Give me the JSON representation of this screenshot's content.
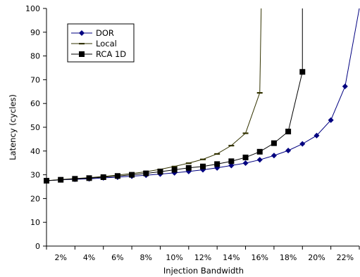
{
  "chart_data": {
    "type": "line",
    "xlabel": "Injection Bandwidth",
    "ylabel": "Latency (cycles)",
    "xlim": [
      0.01,
      0.23
    ],
    "ylim": [
      0,
      100
    ],
    "x_ticks": [
      0.02,
      0.04,
      0.06,
      0.08,
      0.1,
      0.12,
      0.14,
      0.16,
      0.18,
      0.2,
      0.22
    ],
    "x_tick_labels": [
      "2%",
      "4%",
      "6%",
      "8%",
      "10%",
      "12%",
      "14%",
      "16%",
      "18%",
      "20%",
      "22%"
    ],
    "y_ticks": [
      0,
      10,
      20,
      30,
      40,
      50,
      60,
      70,
      80,
      90,
      100
    ],
    "y_tick_labels": [
      "0",
      "10",
      "20",
      "30",
      "40",
      "50",
      "60",
      "70",
      "80",
      "90",
      "100"
    ],
    "grid": false,
    "legend_position": "top-left",
    "series": [
      {
        "name": "DOR",
        "color": "#000080",
        "marker": "diamond",
        "x": [
          0.01,
          0.02,
          0.03,
          0.04,
          0.05,
          0.06,
          0.07,
          0.08,
          0.09,
          0.1,
          0.11,
          0.12,
          0.13,
          0.14,
          0.15,
          0.16,
          0.17,
          0.18,
          0.19,
          0.2,
          0.21,
          0.22,
          0.23
        ],
        "y": [
          27.5,
          27.9,
          28.1,
          28.3,
          28.7,
          29.0,
          29.4,
          29.8,
          30.3,
          30.8,
          31.4,
          32.1,
          32.9,
          33.9,
          34.9,
          36.3,
          38.1,
          40.2,
          43.0,
          46.5,
          53.0,
          67.2,
          100.0
        ]
      },
      {
        "name": "Local",
        "color": "#333300",
        "marker": "dash",
        "x": [
          0.01,
          0.02,
          0.03,
          0.04,
          0.05,
          0.06,
          0.07,
          0.08,
          0.09,
          0.1,
          0.11,
          0.12,
          0.13,
          0.14,
          0.15,
          0.16,
          0.161
        ],
        "y": [
          27.5,
          28.0,
          28.4,
          28.8,
          29.3,
          29.9,
          30.5,
          31.3,
          32.3,
          33.5,
          34.9,
          36.5,
          38.8,
          42.3,
          47.5,
          64.5,
          100.0
        ]
      },
      {
        "name": "RCA 1D",
        "color": "#000000",
        "marker": "square",
        "x": [
          0.01,
          0.02,
          0.03,
          0.04,
          0.05,
          0.06,
          0.07,
          0.08,
          0.09,
          0.1,
          0.11,
          0.12,
          0.13,
          0.14,
          0.15,
          0.16,
          0.17,
          0.18,
          0.19,
          0.19
        ],
        "y": [
          27.5,
          27.9,
          28.3,
          28.6,
          29.0,
          29.5,
          30.0,
          30.6,
          31.3,
          32.1,
          32.9,
          33.5,
          34.5,
          35.7,
          37.3,
          39.7,
          43.3,
          48.2,
          73.3,
          100.0
        ]
      }
    ]
  }
}
